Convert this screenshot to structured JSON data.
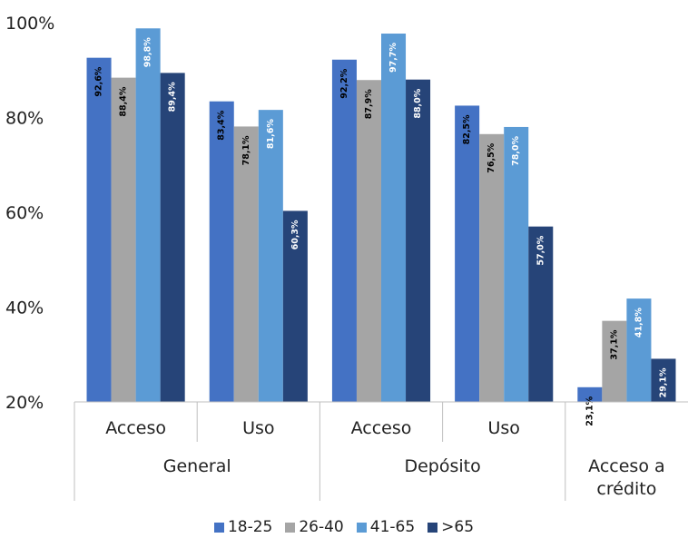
{
  "chart_data": {
    "type": "bar",
    "ylim": [
      20,
      100
    ],
    "yticks": [
      "20%",
      "40%",
      "60%",
      "80%",
      "100%"
    ],
    "ytick_values": [
      20,
      40,
      60,
      80,
      100
    ],
    "legend_position": "bottom",
    "colors": [
      "#4472c4",
      "#a5a5a5",
      "#5b9bd5",
      "#264478"
    ],
    "series": [
      {
        "name": "18-25",
        "values": [
          92.6,
          83.4,
          92.2,
          82.5,
          23.1
        ],
        "labels": [
          "92,6%",
          "83,4%",
          "92,2%",
          "82,5%",
          "23,1%"
        ]
      },
      {
        "name": "26-40",
        "values": [
          88.4,
          78.1,
          87.9,
          76.5,
          37.1
        ],
        "labels": [
          "88,4%",
          "78,1%",
          "87,9%",
          "76,5%",
          "37,1%"
        ]
      },
      {
        "name": "41-65",
        "values": [
          98.8,
          81.6,
          97.7,
          78.0,
          41.8
        ],
        "labels": [
          "98,8%",
          "81,6%",
          "97,7%",
          "78,0%",
          "41,8%"
        ]
      },
      {
        "name": ">65",
        "values": [
          89.4,
          60.3,
          88.0,
          57.0,
          29.1
        ],
        "labels": [
          "89,4%",
          "60,3%",
          "88,0%",
          "57,0%",
          "29,1%"
        ]
      }
    ],
    "categories": [
      "Acceso",
      "Uso",
      "Acceso",
      "Uso",
      ""
    ],
    "groups": [
      {
        "label": "General",
        "span": 2
      },
      {
        "label": "Depósito",
        "span": 2
      },
      {
        "label_lines": [
          "Acceso a",
          "crédito"
        ],
        "span": 1
      }
    ]
  }
}
